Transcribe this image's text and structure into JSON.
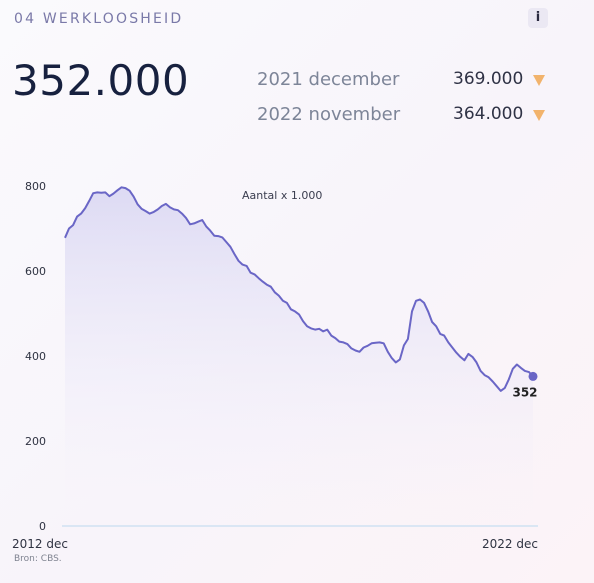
{
  "header": {
    "title": "04 WERKLOOSHEID",
    "info_label": "i"
  },
  "kpi": {
    "current_value": "352.000"
  },
  "comparisons": [
    {
      "label": "2021 december",
      "value": "369.000",
      "trend": "down",
      "trend_icon": "down-triangle-icon"
    },
    {
      "label": "2022 november",
      "value": "364.000",
      "trend": "down",
      "trend_icon": "down-triangle-icon"
    }
  ],
  "colors": {
    "line": "#6a66c6",
    "area": "#dedcf4",
    "arrow": "#f2b36c",
    "title": "#7a79a8",
    "value": "#17213f"
  },
  "source": "Bron: CBS.",
  "chart_data": {
    "type": "area",
    "annotation": "Aantal x 1.000",
    "last_value_label": "352",
    "x_tick_labels": [
      "2012 dec",
      "2022 dec"
    ],
    "y_tick_labels": [
      "0",
      "200",
      "400",
      "600",
      "800"
    ],
    "ylim": [
      0,
      800
    ],
    "grid": false,
    "series": [
      {
        "values": [
          678,
          700,
          708,
          728,
          735,
          748,
          765,
          783,
          785,
          784,
          785,
          776,
          782,
          790,
          797,
          795,
          789,
          775,
          757,
          746,
          741,
          735,
          739,
          745,
          753,
          758,
          750,
          745,
          743,
          735,
          725,
          710,
          712,
          716,
          720,
          705,
          695,
          683,
          682,
          679,
          668,
          657,
          640,
          624,
          615,
          612,
          596,
          592,
          583,
          575,
          568,
          563,
          550,
          542,
          530,
          525,
          510,
          505,
          498,
          482,
          470,
          465,
          462,
          464,
          458,
          462,
          448,
          442,
          434,
          432,
          428,
          418,
          413,
          410,
          420,
          424,
          430,
          431,
          432,
          430,
          410,
          395,
          385,
          392,
          425,
          440,
          505,
          530,
          533,
          525,
          505,
          480,
          470,
          452,
          448,
          432,
          420,
          408,
          398,
          390,
          405,
          398,
          385,
          365,
          355,
          350,
          340,
          329,
          318,
          325,
          345,
          370,
          380,
          372,
          365,
          362,
          352
        ]
      }
    ]
  }
}
